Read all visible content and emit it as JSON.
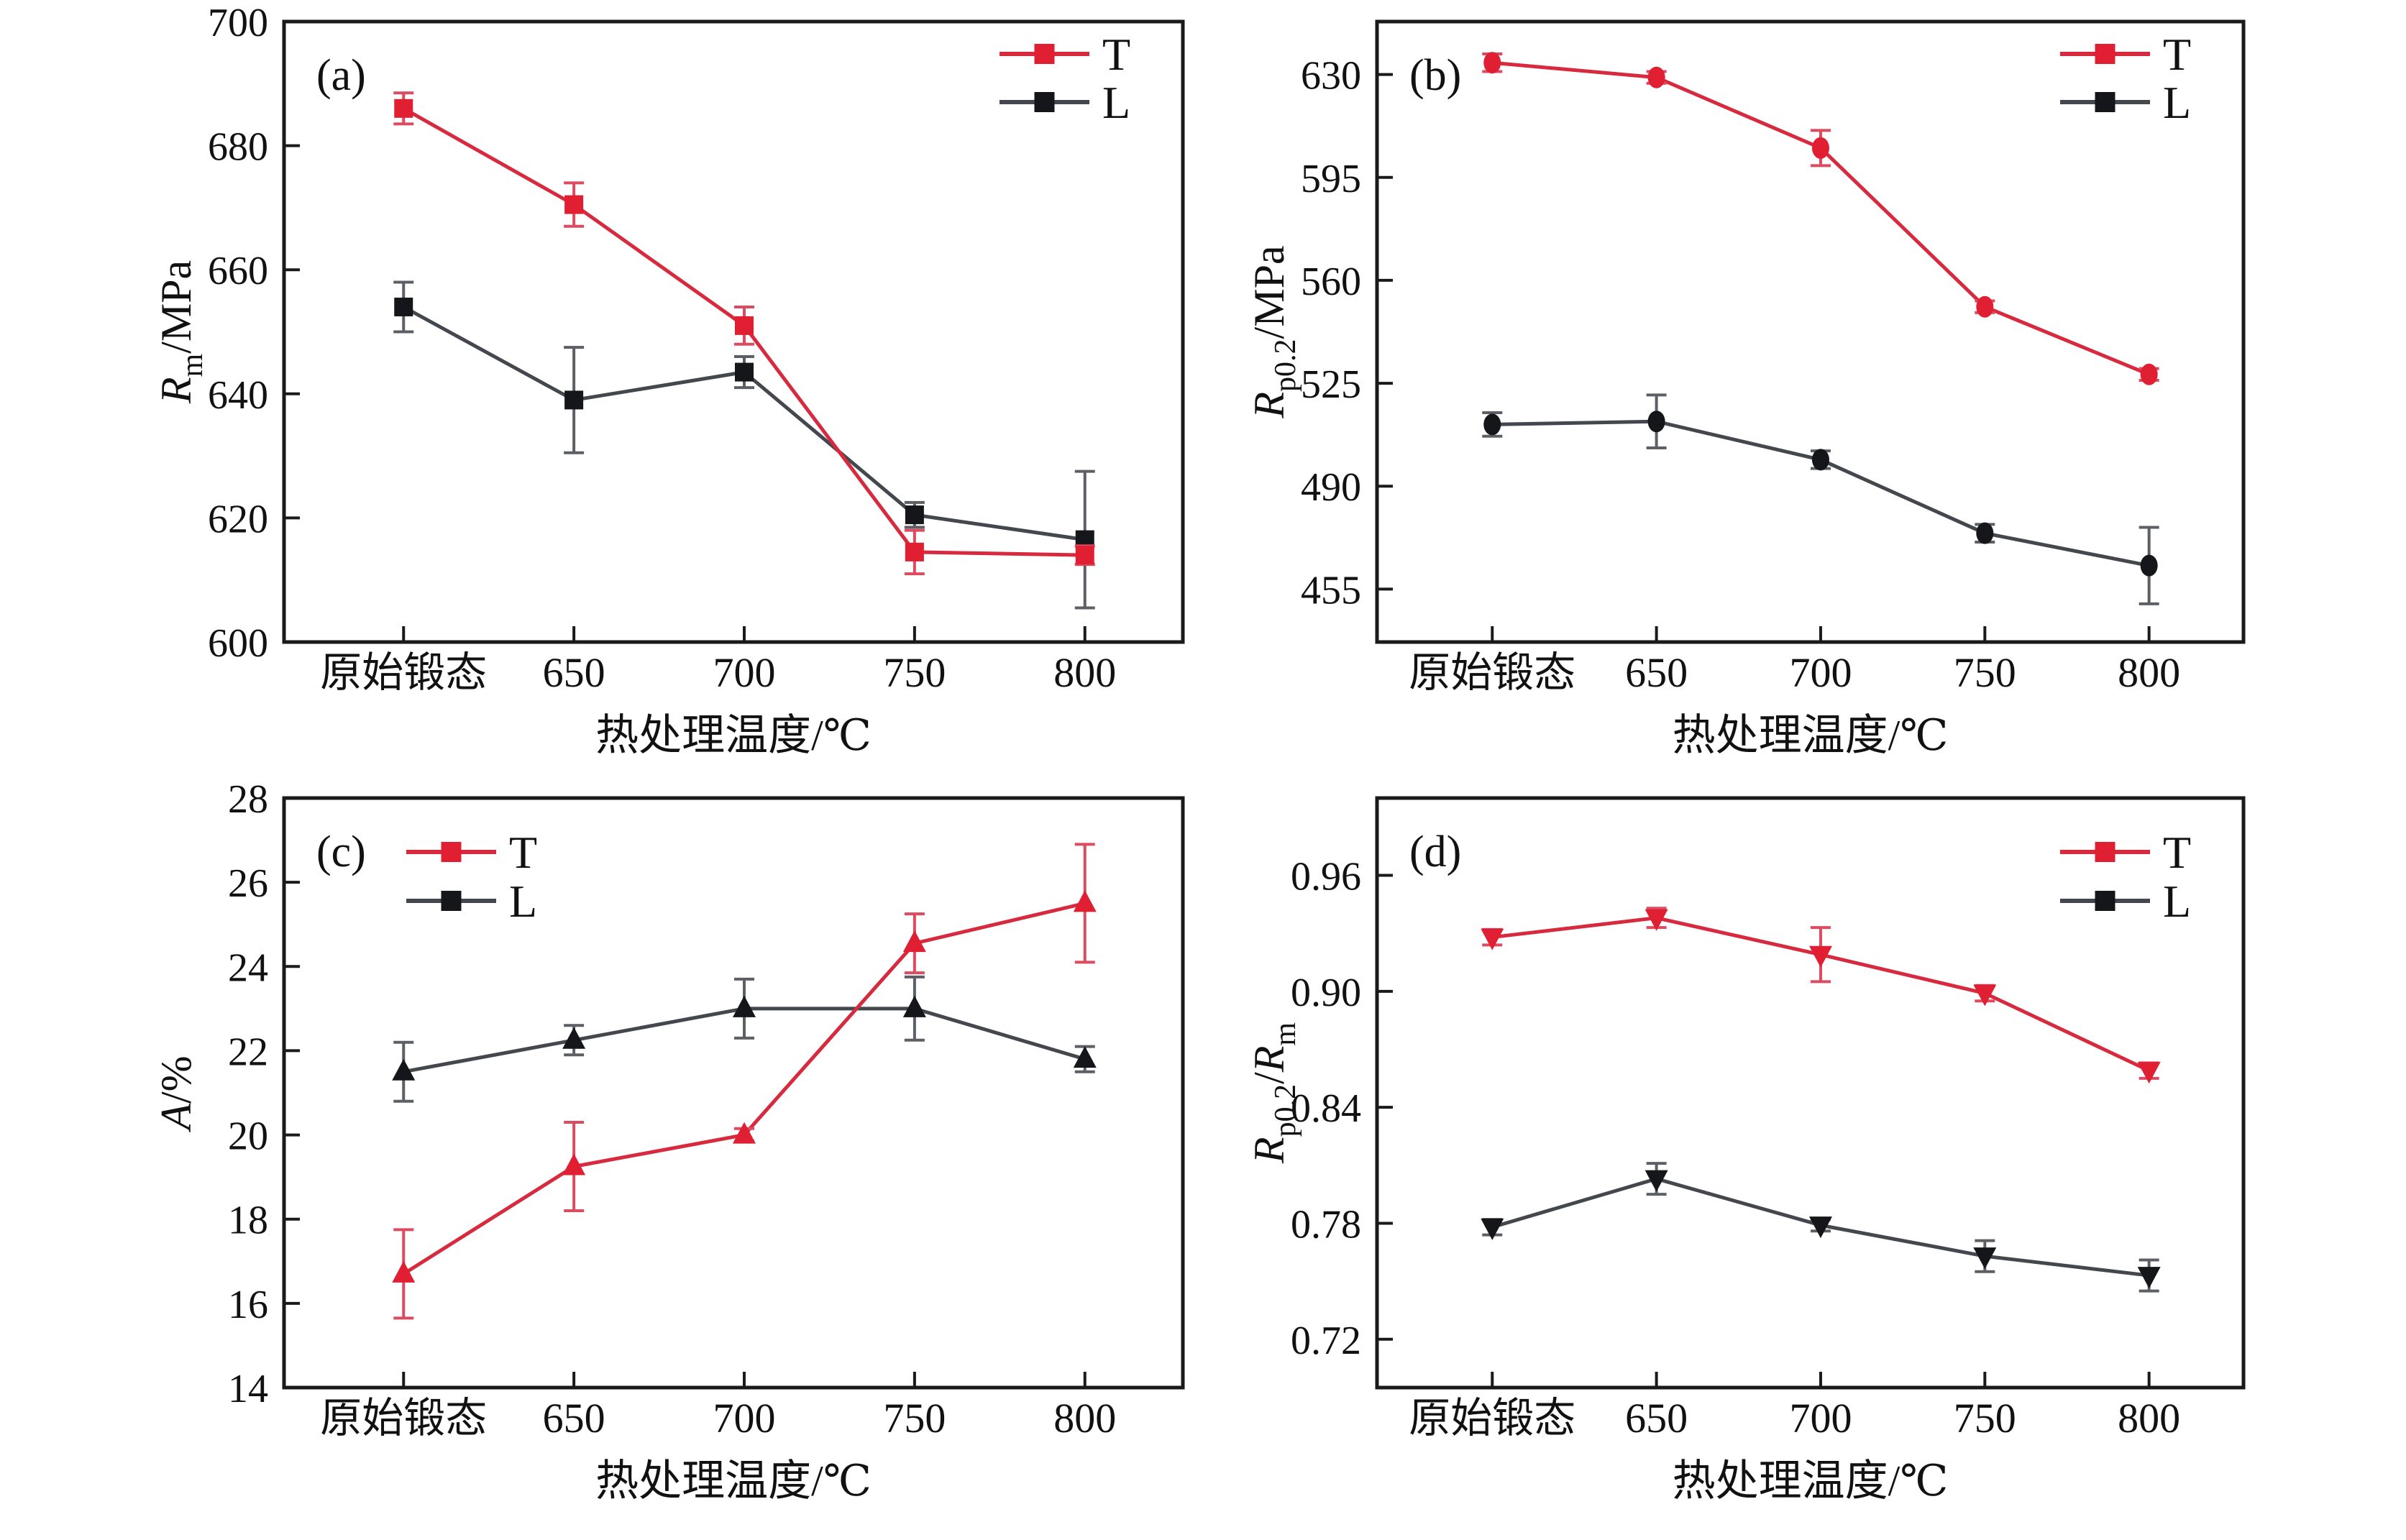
{
  "figure": {
    "background": "#ffffff",
    "xlabel": "热处理温度/℃",
    "categories": [
      "原始锻态",
      "650",
      "700",
      "750",
      "800"
    ],
    "legend_entries": [
      "T",
      "L"
    ],
    "colors": {
      "t_line": "#d82a3e",
      "t_marker": "#e01f33",
      "t_error": "#dd4b60",
      "l_line": "#43474e",
      "l_marker": "#141619",
      "l_error": "#5c6066",
      "axis": "#1a1a1a",
      "text": "#111111"
    }
  },
  "chart_data": [
    {
      "type": "line",
      "panel_label": "(a)",
      "marker": "square",
      "legend_pos": "top-right",
      "ylabel_parts": [
        {
          "t": "R",
          "s": "i"
        },
        {
          "t": "m",
          "s": "sub"
        },
        {
          "t": "/MPa",
          "s": "n"
        }
      ],
      "ylabel_text": "Rm/MPa",
      "ylim": [
        600,
        700
      ],
      "yticks": [
        600,
        620,
        640,
        660,
        680,
        700
      ],
      "ytick_labels": [
        "600",
        "620",
        "640",
        "660",
        "680",
        "700"
      ],
      "series": [
        {
          "name": "T",
          "values": [
            686,
            670.5,
            651,
            614.5,
            614
          ],
          "errors": [
            2.5,
            3.5,
            3,
            3.5,
            1.5
          ]
        },
        {
          "name": "L",
          "values": [
            654,
            639,
            643.5,
            620.5,
            616.5
          ],
          "errors": [
            4,
            8.5,
            2.5,
            2,
            11
          ]
        }
      ]
    },
    {
      "type": "line",
      "panel_label": "(b)",
      "marker": "circle",
      "legend_pos": "top-right",
      "ylabel_parts": [
        {
          "t": "R",
          "s": "i"
        },
        {
          "t": "p0.2",
          "s": "sub"
        },
        {
          "t": "/MPa",
          "s": "n"
        }
      ],
      "ylabel_text": "Rp0.2/MPa",
      "ylim": [
        437,
        648
      ],
      "yticks": [
        455,
        490,
        525,
        560,
        595,
        630
      ],
      "ytick_labels": [
        "455",
        "490",
        "525",
        "560",
        "595",
        "630"
      ],
      "series": [
        {
          "name": "T",
          "values": [
            634,
            629,
            605,
            551,
            528
          ],
          "errors": [
            3,
            2,
            6,
            2,
            2
          ]
        },
        {
          "name": "L",
          "values": [
            511,
            512,
            499,
            474,
            463
          ],
          "errors": [
            4,
            9,
            3,
            3,
            13
          ]
        }
      ]
    },
    {
      "type": "line",
      "panel_label": "(c)",
      "marker": "triangle-up",
      "legend_pos": "top-left",
      "ylabel_parts": [
        {
          "t": "A",
          "s": "i"
        },
        {
          "t": "/%",
          "s": "n"
        }
      ],
      "ylabel_text": "A/%",
      "ylim": [
        14,
        28
      ],
      "yticks": [
        14,
        16,
        18,
        20,
        22,
        24,
        26,
        28
      ],
      "ytick_labels": [
        "14",
        "16",
        "18",
        "20",
        "22",
        "24",
        "26",
        "28"
      ],
      "series": [
        {
          "name": "T",
          "values": [
            16.7,
            19.25,
            20,
            24.55,
            25.5
          ],
          "errors": [
            1.05,
            1.05,
            0.15,
            0.7,
            1.4
          ]
        },
        {
          "name": "L",
          "values": [
            21.5,
            22.25,
            23,
            23,
            21.8
          ],
          "errors": [
            0.7,
            0.35,
            0.7,
            0.75,
            0.3
          ]
        }
      ]
    },
    {
      "type": "line",
      "panel_label": "(d)",
      "marker": "triangle-down",
      "legend_pos": "top-right",
      "ylabel_parts": [
        {
          "t": "R",
          "s": "i"
        },
        {
          "t": "p0.2",
          "s": "sub"
        },
        {
          "t": "/",
          "s": "n"
        },
        {
          "t": "R",
          "s": "i"
        },
        {
          "t": "m",
          "s": "sub"
        }
      ],
      "ylabel_text": "Rp0.2/Rm",
      "ylim": [
        0.695,
        1.0
      ],
      "yticks": [
        0.72,
        0.78,
        0.84,
        0.9,
        0.96
      ],
      "ytick_labels": [
        "0.72",
        "0.78",
        "0.84",
        "0.90",
        "0.96"
      ],
      "series": [
        {
          "name": "T",
          "values": [
            0.928,
            0.938,
            0.919,
            0.899,
            0.859
          ],
          "errors": [
            0.004,
            0.005,
            0.014,
            0.004,
            0.004
          ]
        },
        {
          "name": "L",
          "values": [
            0.778,
            0.803,
            0.779,
            0.763,
            0.753
          ],
          "errors": [
            0.004,
            0.008,
            0.003,
            0.008,
            0.008
          ]
        }
      ]
    }
  ]
}
